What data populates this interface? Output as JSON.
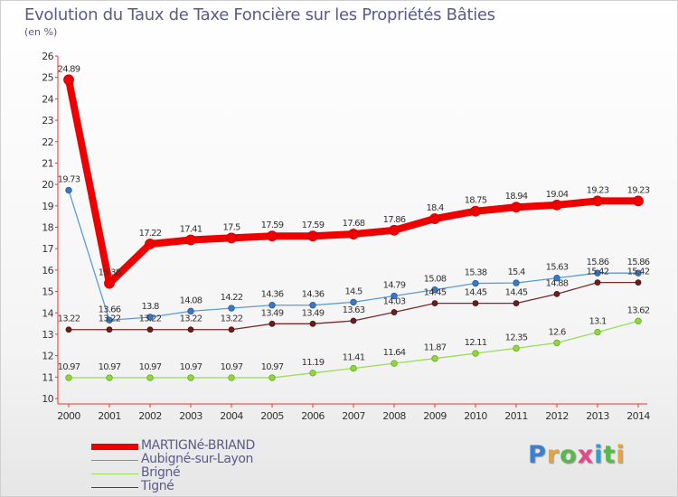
{
  "title": "Evolution du Taux de Taxe Foncière sur les Propriétés Bâties",
  "unit": "(en %)",
  "logo": "Proxiti",
  "chart_data": {
    "type": "line",
    "title": "Evolution du Taux de Taxe Foncière sur les Propriétés Bâties",
    "ylabel": "(en %)",
    "xlabel": "",
    "x": [
      "2000",
      "2001",
      "2002",
      "2003",
      "2004",
      "2005",
      "2006",
      "2007",
      "2008",
      "2009",
      "2010",
      "2011",
      "2012",
      "2013",
      "2014"
    ],
    "ylim": [
      10,
      26
    ],
    "yticks": [
      "10",
      "11",
      "12",
      "13",
      "14",
      "15",
      "16",
      "17",
      "18",
      "19",
      "20",
      "21",
      "22",
      "23",
      "24",
      "25",
      "26"
    ],
    "grid": false,
    "legend_position": "bottom-left",
    "series": [
      {
        "name": "MARTIGNé-BRIAND",
        "color": "#ee0000",
        "values": [
          24.89,
          15.38,
          17.22,
          17.41,
          17.5,
          17.59,
          17.59,
          17.68,
          17.86,
          18.4,
          18.75,
          18.94,
          19.04,
          19.23,
          19.23
        ],
        "labels": [
          "24.89",
          "15.38",
          "17.22",
          "17.41",
          "17.5",
          "17.59",
          "17.59",
          "17.68",
          "17.86",
          "18.4",
          "18.75",
          "18.94",
          "19.04",
          "19.23",
          "19.23"
        ]
      },
      {
        "name": "Aubigné-sur-Layon",
        "color": "#5b9bd5",
        "values": [
          19.73,
          13.66,
          13.8,
          14.08,
          14.22,
          14.36,
          14.36,
          14.5,
          14.79,
          15.08,
          15.38,
          15.4,
          15.63,
          15.86,
          15.86
        ],
        "labels": [
          "19.73",
          "13.66",
          "13.8",
          "14.08",
          "14.22",
          "14.36",
          "14.36",
          "14.5",
          "14.79",
          "15.08",
          "15.38",
          "15.4",
          "15.63",
          "15.86",
          "15.86"
        ]
      },
      {
        "name": "Brigné",
        "color": "#99dd55",
        "values": [
          10.97,
          10.97,
          10.97,
          10.97,
          10.97,
          10.97,
          11.19,
          11.41,
          11.64,
          11.87,
          12.11,
          12.35,
          12.6,
          13.1,
          13.62
        ],
        "labels": [
          "10.97",
          "10.97",
          "10.97",
          "10.97",
          "10.97",
          "10.97",
          "11.19",
          "11.41",
          "11.64",
          "11.87",
          "12.11",
          "12.35",
          "12.6",
          "13.1",
          "13.62"
        ]
      },
      {
        "name": "Tigné",
        "color": "#7a2a2a",
        "values": [
          13.22,
          13.22,
          13.22,
          13.22,
          13.22,
          13.49,
          13.49,
          13.63,
          14.03,
          14.45,
          14.45,
          14.45,
          14.88,
          15.42,
          15.42
        ],
        "labels": [
          "13.22",
          "13.22",
          "13.22",
          "13.22",
          "13.22",
          "13.49",
          "13.49",
          "13.63",
          "14.03",
          "14.45",
          "14.45",
          "14.45",
          "14.88",
          "15.42",
          "15.42"
        ]
      }
    ]
  }
}
